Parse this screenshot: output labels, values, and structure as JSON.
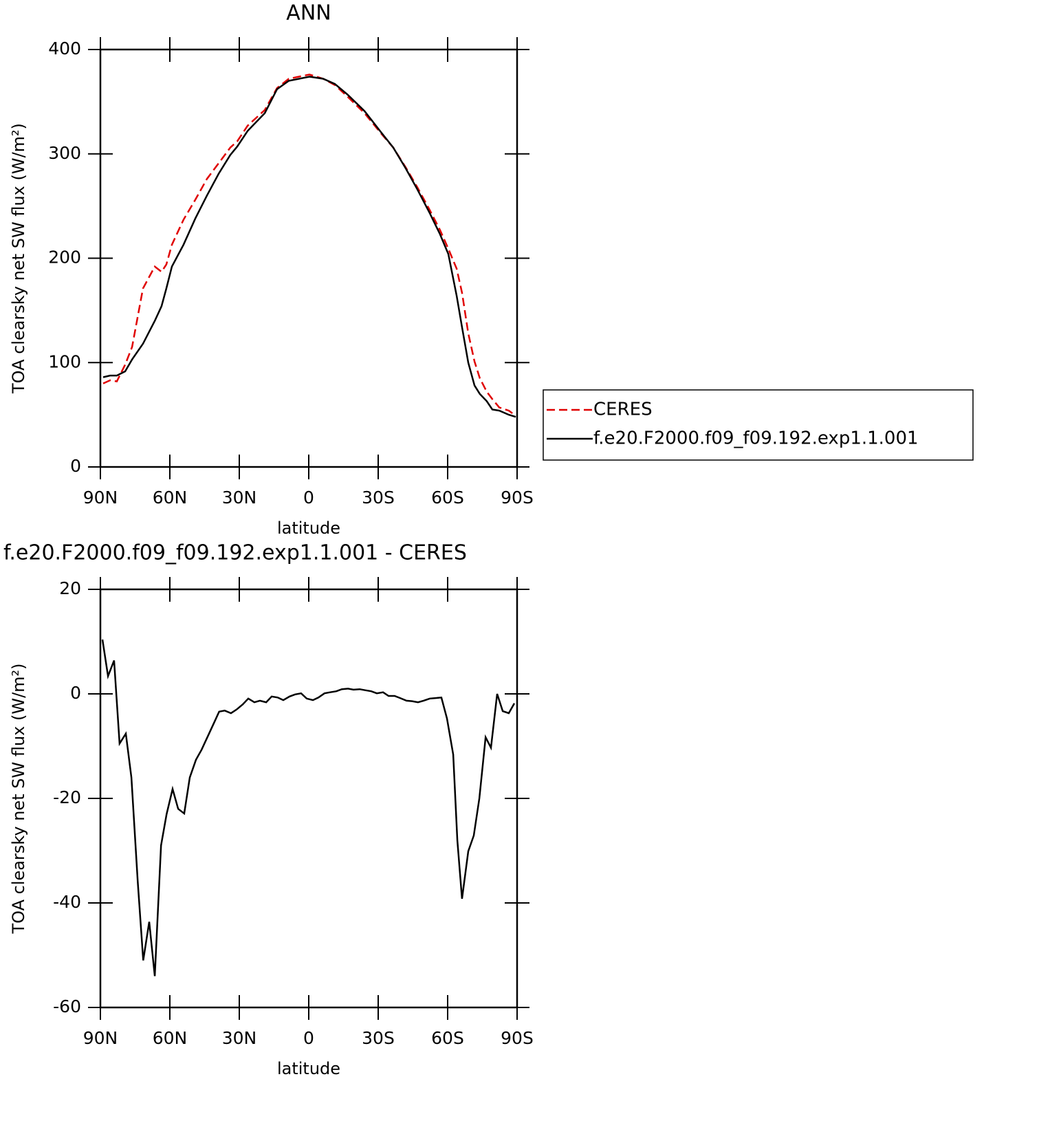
{
  "chart_data": [
    {
      "type": "line",
      "title": "ANN",
      "x_label": "latitude",
      "y_label": "TOA clearsky net SW flux (W/m²)",
      "x": [
        88.8,
        85.8,
        82.9,
        79.3,
        76.3,
        71.6,
        66.5,
        63.6,
        61.5,
        59.1,
        54.1,
        49.0,
        44.0,
        38.9,
        33.9,
        30.9,
        26.4,
        19.0,
        13.7,
        8.6,
        -0.3,
        -6.2,
        -11.3,
        -16.7,
        -24.1,
        -31.5,
        -36.5,
        -41.9,
        -46.9,
        -52.3,
        -56.7,
        -60.3,
        -63.9,
        -66.2,
        -68.9,
        -71.6,
        -73.9,
        -76.9,
        -79.3,
        -82.3,
        -86.4,
        -89.4
      ],
      "series": [
        {
          "name": "CERES",
          "color": "#e00000",
          "dash": true,
          "values": [
            80,
            83,
            82,
            98,
            115,
            171,
            192,
            187,
            194,
            213,
            237,
            256,
            276,
            291,
            306,
            312,
            327,
            342,
            363,
            372,
            376,
            372,
            366,
            355,
            339,
            319,
            306,
            287,
            268,
            246,
            227,
            209,
            190,
            167,
            128,
            101,
            85,
            72,
            65,
            57,
            54,
            49
          ]
        },
        {
          "name": "f.e20.F2000.f09_f09.192.exp1.1.001",
          "color": "#000000",
          "dash": false,
          "values": [
            86,
            87.6,
            87.6,
            91.6,
            103,
            118,
            140,
            154,
            171,
            192,
            213,
            238,
            260,
            281,
            299,
            307,
            322,
            339,
            362,
            370,
            374,
            372,
            367,
            357,
            341,
            320,
            306,
            286,
            266,
            243,
            223,
            204,
            164,
            134,
            100,
            78,
            70,
            63,
            55,
            54,
            50,
            48
          ]
        }
      ],
      "xlim": [
        90,
        -90
      ],
      "xticks": [
        {
          "value": 90,
          "label": "90N"
        },
        {
          "value": 60,
          "label": "60N"
        },
        {
          "value": 30,
          "label": "30N"
        },
        0,
        {
          "value": -30,
          "label": "30S"
        },
        {
          "value": -60,
          "label": "60S"
        },
        {
          "value": -90,
          "label": "90S"
        }
      ],
      "ylim": [
        0,
        400
      ],
      "yticks": [
        0,
        100,
        200,
        300,
        400
      ],
      "legend": "right"
    },
    {
      "type": "line",
      "title": "f.e20.F2000.f09_f09.192.exp1.1.001 - CERES",
      "x_label": "latitude",
      "y_label": "TOA clearsky net SW flux (W/m²)",
      "x": [
        89.1,
        86.7,
        84.1,
        81.7,
        79.0,
        76.6,
        73.9,
        71.5,
        68.9,
        66.5,
        63.8,
        61.4,
        58.8,
        56.4,
        53.8,
        51.4,
        48.7,
        46.3,
        43.7,
        41.3,
        38.7,
        36.3,
        33.6,
        31.2,
        28.5,
        26.1,
        23.5,
        21.1,
        18.4,
        16.0,
        13.4,
        11.0,
        8.3,
        5.9,
        3.3,
        0.9,
        -1.8,
        -4.2,
        -6.8,
        -9.2,
        -11.9,
        -14.3,
        -17.0,
        -19.3,
        -22.0,
        -24.4,
        -27.0,
        -29.4,
        -32.1,
        -34.5,
        -37.1,
        -39.5,
        -42.2,
        -44.6,
        -47.2,
        -49.6,
        -52.3,
        -54.7,
        -57.3,
        -59.7,
        -62.4,
        -64.2,
        -66.2,
        -68.9,
        -71.3,
        -73.7,
        -76.4,
        -78.7,
        -81.4,
        -83.8,
        -86.4,
        -88.8
      ],
      "series": [
        {
          "color": "#000000",
          "dash": false,
          "values": [
            10.4,
            3.4,
            6.4,
            -9.5,
            -7.6,
            -16,
            -35.7,
            -51,
            -43.6,
            -54,
            -29,
            -23,
            -18.2,
            -22,
            -22.9,
            -16,
            -12.6,
            -10.7,
            -8.2,
            -5.9,
            -3.4,
            -3.2,
            -3.7,
            -3,
            -2,
            -0.9,
            -1.6,
            -1.3,
            -1.6,
            -0.5,
            -0.7,
            -1.2,
            -0.5,
            -0.1,
            0.1,
            -0.9,
            -1.2,
            -0.7,
            0.1,
            0.3,
            0.5,
            0.9,
            1,
            0.8,
            0.9,
            0.7,
            0.5,
            0.1,
            0.3,
            -0.4,
            -0.4,
            -0.8,
            -1.3,
            -1.4,
            -1.6,
            -1.3,
            -0.9,
            -0.8,
            -0.7,
            -4.7,
            -11.6,
            -28,
            -39.2,
            -30.1,
            -27.1,
            -20,
            -8.3,
            -10.3,
            0,
            -3.3,
            -3.7,
            -1.8
          ]
        }
      ],
      "xlim": [
        90,
        -90
      ],
      "xticks": [
        {
          "value": 90,
          "label": "90N"
        },
        {
          "value": 60,
          "label": "60N"
        },
        {
          "value": 30,
          "label": "30N"
        },
        0,
        {
          "value": -30,
          "label": "30S"
        },
        {
          "value": -60,
          "label": "60S"
        },
        {
          "value": -90,
          "label": "90S"
        }
      ],
      "ylim": [
        -60,
        20
      ],
      "yticks": [
        -60,
        -40,
        -20,
        0,
        20
      ]
    }
  ]
}
